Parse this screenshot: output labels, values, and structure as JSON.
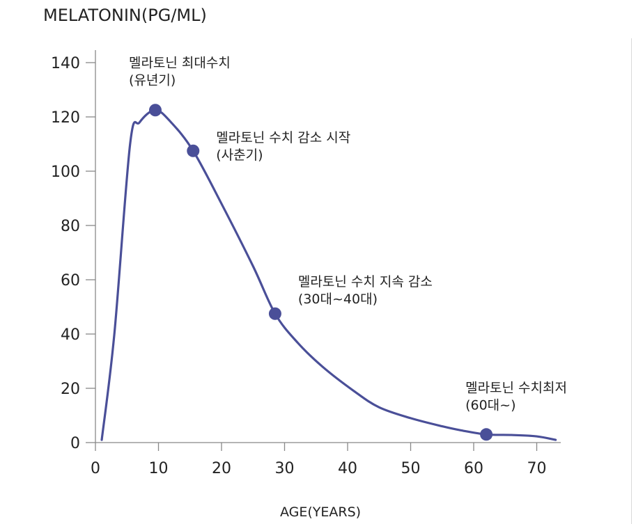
{
  "chart_data": {
    "type": "line",
    "title": "",
    "ylabel": "MELATONIN(PG/ML)",
    "xlabel": "AGE(YEARS)",
    "xlim": [
      0,
      73
    ],
    "ylim": [
      0,
      140
    ],
    "xticks": [
      0,
      10,
      20,
      30,
      40,
      50,
      60,
      70
    ],
    "yticks": [
      0,
      20,
      40,
      60,
      80,
      100,
      120,
      140
    ],
    "grid": false,
    "line_color": "#4a4f98",
    "series": [
      {
        "name": "",
        "curve": [
          [
            1,
            1
          ],
          [
            3,
            40
          ],
          [
            5.5,
            110
          ],
          [
            7,
            118
          ],
          [
            9.5,
            122.5
          ],
          [
            12,
            118
          ],
          [
            15.5,
            107.5
          ],
          [
            20,
            88
          ],
          [
            25,
            65
          ],
          [
            28.5,
            47.5
          ],
          [
            32,
            37
          ],
          [
            36,
            28
          ],
          [
            41,
            19
          ],
          [
            45,
            13
          ],
          [
            50,
            9
          ],
          [
            55,
            6
          ],
          [
            58,
            4.5
          ],
          [
            62,
            3
          ],
          [
            66,
            2.8
          ],
          [
            70,
            2.3
          ],
          [
            73,
            1
          ]
        ],
        "markers": [
          {
            "x": 9.5,
            "y": 122.5
          },
          {
            "x": 15.5,
            "y": 107.5
          },
          {
            "x": 28.5,
            "y": 47.5
          },
          {
            "x": 62,
            "y": 3
          }
        ]
      }
    ],
    "annotations": [
      {
        "x": 9.5,
        "y": 122.5,
        "line1": "멜라토닌 최대수치",
        "line2": "(유년기)"
      },
      {
        "x": 15.5,
        "y": 107.5,
        "line1": "멜라토닌 수치 감소 시작",
        "line2": "(사춘기)"
      },
      {
        "x": 28.5,
        "y": 47.5,
        "line1": "멜라토닌  수치 지속 감소",
        "line2": "(30대~40대)"
      },
      {
        "x": 62,
        "y": 3,
        "line1": "멜라토닌  수치최저",
        "line2": "(60대~)"
      }
    ]
  }
}
